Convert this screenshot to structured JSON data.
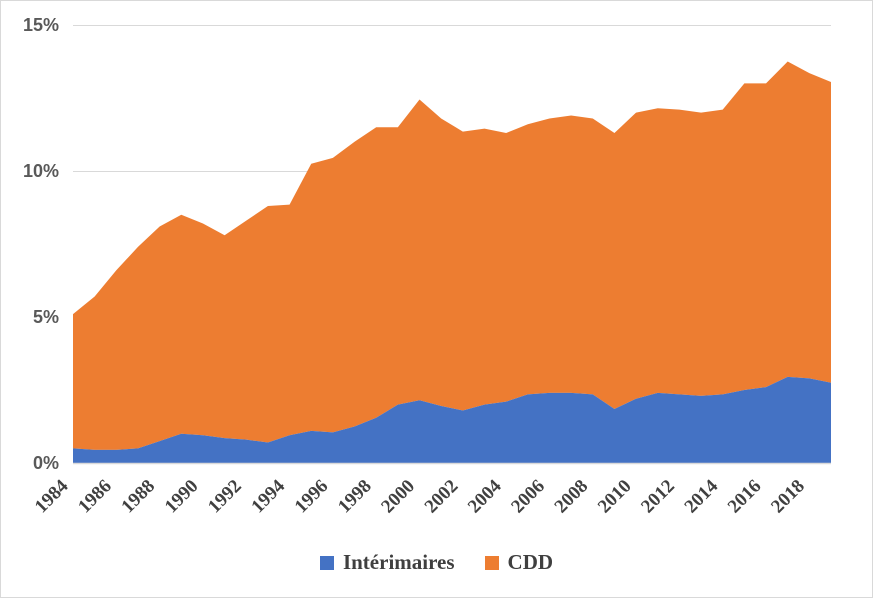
{
  "chart_data": {
    "type": "area",
    "stacked": true,
    "title": "",
    "xlabel": "",
    "ylabel": "",
    "x": [
      1984,
      1985,
      1986,
      1987,
      1988,
      1989,
      1990,
      1991,
      1992,
      1993,
      1994,
      1995,
      1996,
      1997,
      1998,
      1999,
      2000,
      2001,
      2002,
      2003,
      2004,
      2005,
      2006,
      2007,
      2008,
      2009,
      2010,
      2011,
      2012,
      2013,
      2014,
      2015,
      2016,
      2017,
      2018,
      2019
    ],
    "series": [
      {
        "name": "Intérimaires",
        "color": "#4472C4",
        "values": [
          0.5,
          0.45,
          0.45,
          0.5,
          0.75,
          1.0,
          0.95,
          0.85,
          0.8,
          0.7,
          0.95,
          1.1,
          1.05,
          1.25,
          1.55,
          2.0,
          2.15,
          1.95,
          1.8,
          2.0,
          2.1,
          2.35,
          2.4,
          2.4,
          2.35,
          1.85,
          2.2,
          2.4,
          2.35,
          2.3,
          2.35,
          2.5,
          2.6,
          2.95,
          2.9,
          2.75
        ]
      },
      {
        "name": "CDD",
        "color": "#ED7D31",
        "values": [
          4.6,
          5.25,
          6.15,
          6.9,
          7.35,
          7.5,
          7.25,
          6.95,
          7.5,
          8.1,
          7.9,
          9.15,
          9.4,
          9.75,
          9.95,
          9.5,
          10.3,
          9.85,
          9.55,
          9.45,
          9.2,
          9.25,
          9.4,
          9.5,
          9.45,
          9.45,
          9.8,
          9.75,
          9.75,
          9.7,
          9.75,
          10.5,
          10.4,
          10.8,
          10.45,
          10.3
        ]
      }
    ],
    "ylim": [
      0,
      15
    ],
    "ytick_values": [
      0,
      5,
      10,
      15
    ],
    "ytick_labels": [
      "0%",
      "5%",
      "10%",
      "15%"
    ],
    "xtick_labels": [
      "1984",
      "1986",
      "1988",
      "1990",
      "1992",
      "1994",
      "1996",
      "1998",
      "2000",
      "2002",
      "2004",
      "2006",
      "2008",
      "2010",
      "2012",
      "2014",
      "2016",
      "2018"
    ],
    "grid": true,
    "legend_position": "bottom"
  },
  "legend": {
    "items": [
      {
        "label": "Intérimaires",
        "color": "#4472C4"
      },
      {
        "label": "CDD",
        "color": "#ED7D31"
      }
    ]
  },
  "colors": {
    "series_interimaires": "#4472C4",
    "series_cdd": "#ED7D31",
    "gridline": "#d9d9d9",
    "axis_line": "#d9d9d9",
    "y_tick_text": "#595959",
    "x_tick_text": "#404040",
    "legend_text": "#3f3f3f",
    "background": "#ffffff",
    "frame_border": "#d9d9d9"
  }
}
